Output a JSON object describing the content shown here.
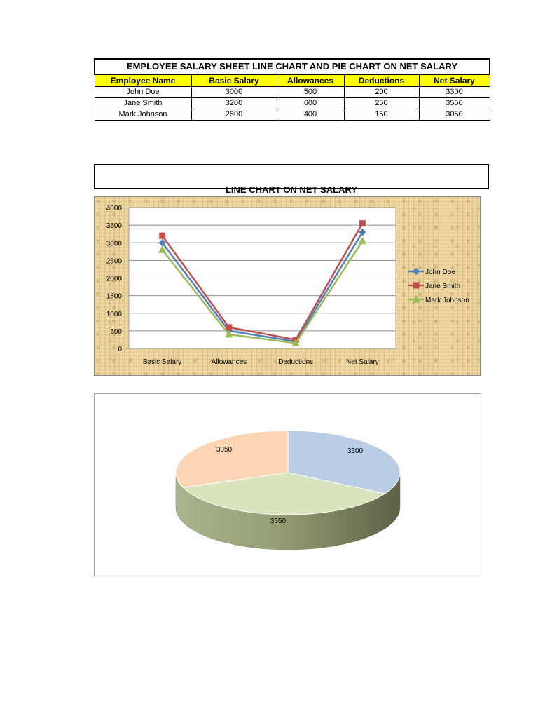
{
  "table": {
    "title": "EMPLOYEE SALARY SHEET LINE CHART AND PIE CHART ON NET SALARY",
    "headers": [
      "Employee Name",
      "Basic Salary",
      "Allowances",
      "Deductions",
      "Net Salary"
    ],
    "rows": [
      [
        "John Doe",
        "3000",
        "500",
        "200",
        "3300"
      ],
      [
        "Jane Smith",
        "3200",
        "600",
        "250",
        "3550"
      ],
      [
        "Mark Johnson",
        "2800",
        "400",
        "150",
        "3050"
      ]
    ]
  },
  "line_section": {
    "title": "LINE CHART ON NET SALARY"
  },
  "colors": {
    "header_fill": "#ffff00",
    "john": "#4f81bd",
    "jane": "#c0504d",
    "mark": "#9bbb59",
    "chart_background": "#e8d098"
  },
  "chart_data": [
    {
      "type": "line",
      "categories": [
        "Basic Salary",
        "Allowances",
        "Deductions",
        "Net Salary"
      ],
      "series": [
        {
          "name": "John Doe",
          "values": [
            3000,
            500,
            200,
            3300
          ],
          "color": "#4f81bd",
          "marker": "diamond"
        },
        {
          "name": "Jane Smith",
          "values": [
            3200,
            600,
            250,
            3550
          ],
          "color": "#c0504d",
          "marker": "square"
        },
        {
          "name": "Mark Johnson",
          "values": [
            2800,
            400,
            150,
            3050
          ],
          "color": "#9bbb59",
          "marker": "triangle"
        }
      ],
      "ylim": [
        0,
        4000
      ],
      "yticks": [
        "0",
        "500",
        "1000",
        "1500",
        "2000",
        "2500",
        "3000",
        "3500",
        "4000"
      ],
      "grid": true,
      "legend": "right"
    },
    {
      "type": "pie",
      "values": [
        3300,
        3550,
        3050
      ],
      "labels": [
        "3300",
        "3550",
        "3050"
      ],
      "colors": [
        "#b9cde5",
        "#d7e4bd",
        "#fcd5b5"
      ],
      "style": "3d"
    }
  ]
}
